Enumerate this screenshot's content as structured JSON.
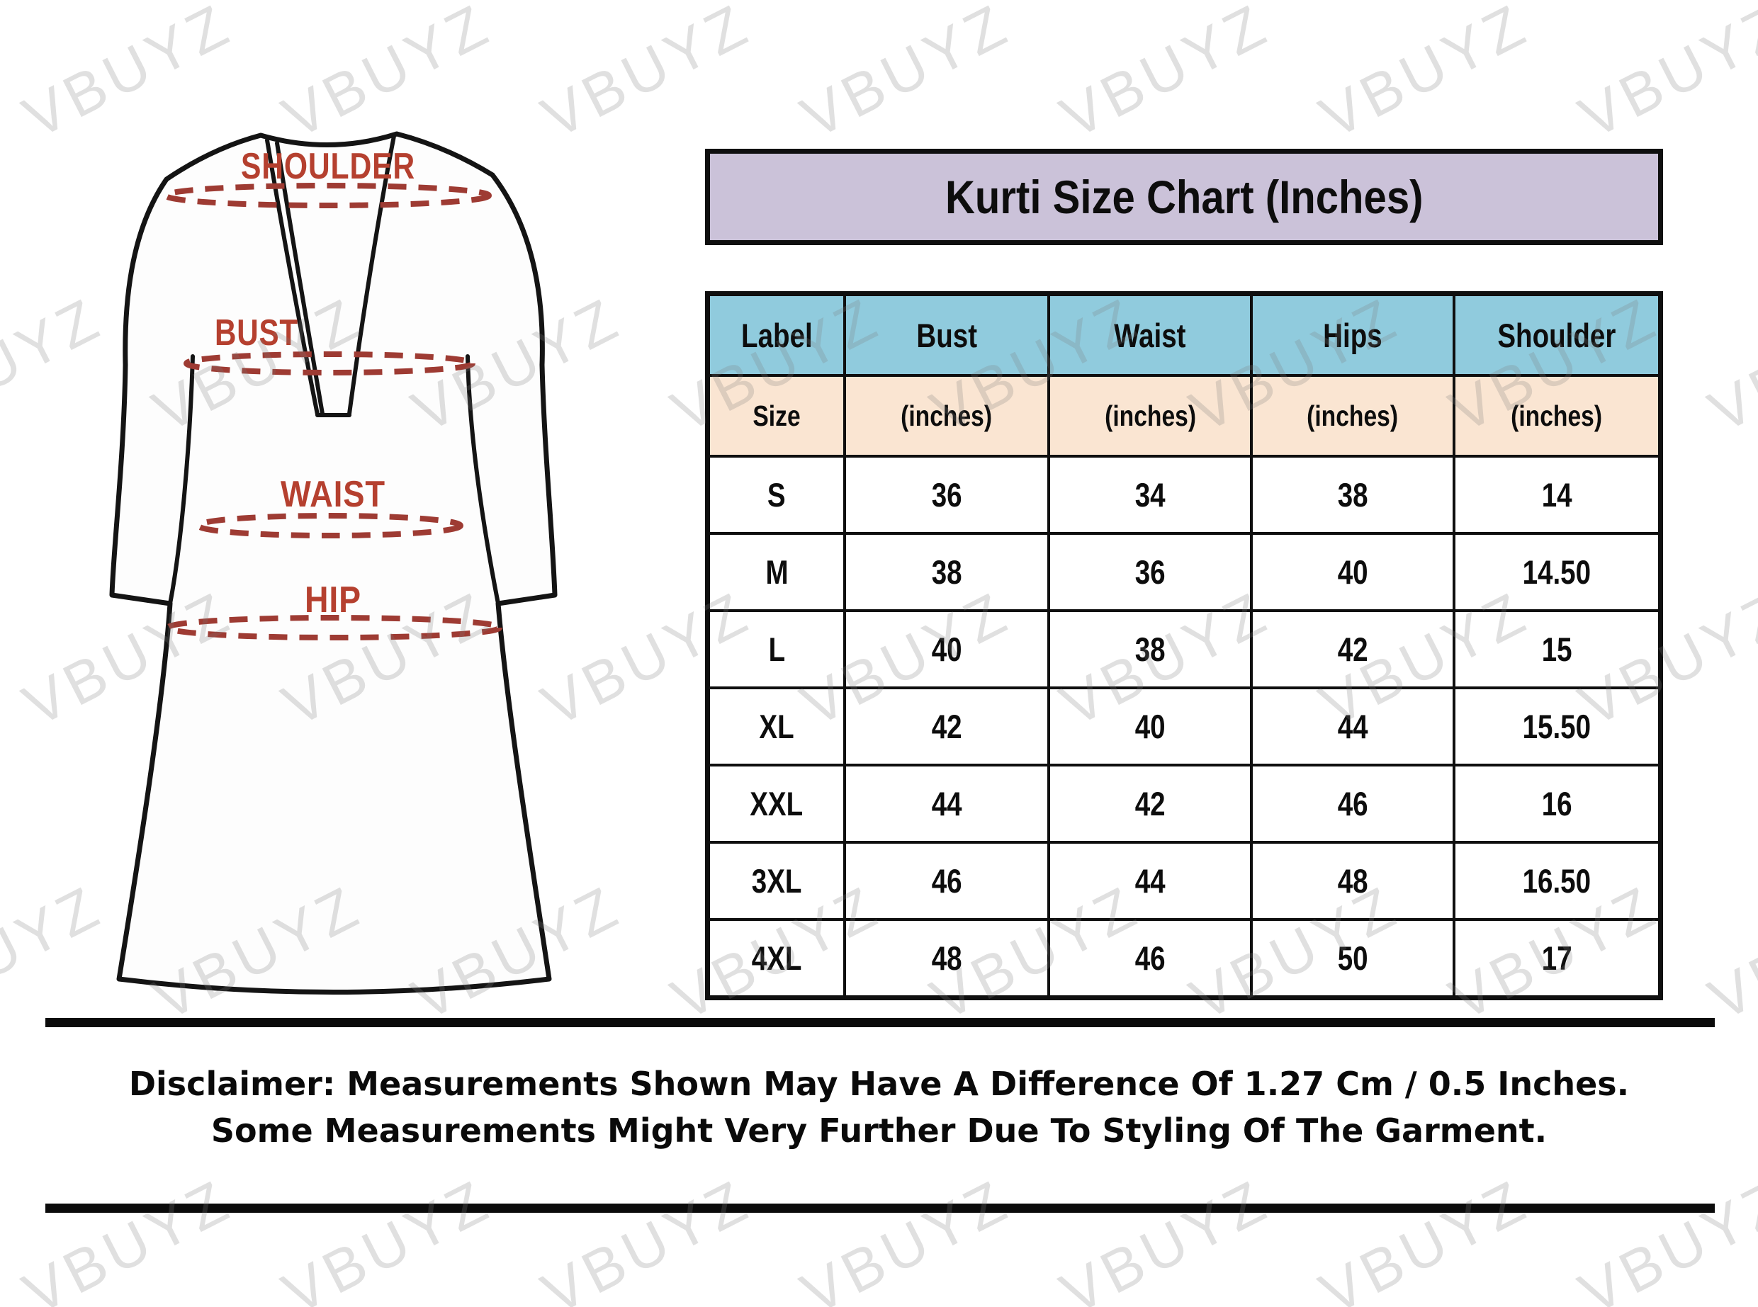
{
  "title": "Kurti Size Chart (Inches)",
  "watermark": {
    "text": "VBUYZ"
  },
  "garment": {
    "labels": {
      "shoulder": "SHOULDER",
      "bust": "BUST",
      "waist": "WAIST",
      "hip": "HIP"
    }
  },
  "table": {
    "columns": [
      {
        "label": "Label",
        "unit": "Size"
      },
      {
        "label": "Bust",
        "unit": "(inches)"
      },
      {
        "label": "Waist",
        "unit": "(inches)"
      },
      {
        "label": "Hips",
        "unit": "(inches)"
      },
      {
        "label": "Shoulder",
        "unit": "(inches)"
      }
    ],
    "rows": [
      {
        "size": "S",
        "bust": "36",
        "waist": "34",
        "hips": "38",
        "shoulder": "14"
      },
      {
        "size": "M",
        "bust": "38",
        "waist": "36",
        "hips": "40",
        "shoulder": "14.50"
      },
      {
        "size": "L",
        "bust": "40",
        "waist": "38",
        "hips": "42",
        "shoulder": "15"
      },
      {
        "size": "XL",
        "bust": "42",
        "waist": "40",
        "hips": "44",
        "shoulder": "15.50"
      },
      {
        "size": "XXL",
        "bust": "44",
        "waist": "42",
        "hips": "46",
        "shoulder": "16"
      },
      {
        "size": "3XL",
        "bust": "46",
        "waist": "44",
        "hips": "48",
        "shoulder": "16.50"
      },
      {
        "size": "4XL",
        "bust": "48",
        "waist": "46",
        "hips": "50",
        "shoulder": "17"
      }
    ]
  },
  "disclaimer": {
    "line1": "Disclaimer: Measurements Shown May Have A Difference Of 1.27 Cm / 0.5 Inches.",
    "line2": "Some Measurements Might Very Further Due To Styling Of The Garment."
  },
  "colors": {
    "title_bg": "#cbc2d9",
    "header_blue": "#90cbdd",
    "subheader_peach": "#fae5d2",
    "measure_label_red": "#b5402f",
    "dash_line_red": "#9e3b33",
    "border_black": "#0f0f0f",
    "watermark_gray": "#e0e0e0"
  },
  "chart_data": {
    "type": "table",
    "title": "Kurti Size Chart (Inches)",
    "columns": [
      "Label Size",
      "Bust (inches)",
      "Waist (inches)",
      "Hips (inches)",
      "Shoulder (inches)"
    ],
    "rows": [
      [
        "S",
        36,
        34,
        38,
        14
      ],
      [
        "M",
        38,
        36,
        40,
        14.5
      ],
      [
        "L",
        40,
        38,
        42,
        15
      ],
      [
        "XL",
        42,
        40,
        44,
        15.5
      ],
      [
        "XXL",
        44,
        42,
        46,
        16
      ],
      [
        "3XL",
        46,
        44,
        48,
        16.5
      ],
      [
        "4XL",
        48,
        46,
        50,
        17
      ]
    ]
  }
}
